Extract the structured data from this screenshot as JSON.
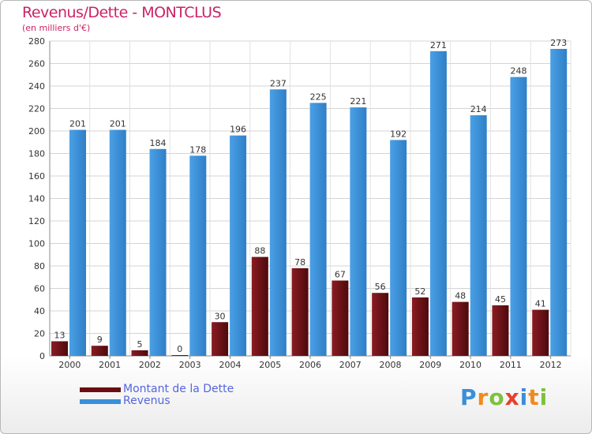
{
  "title": "Revenus/Dette - MONTCLUS",
  "subtitle": "(en milliers d'€)",
  "logo_text": "Proxiti",
  "chart_data": {
    "type": "bar",
    "title": "Revenus/Dette - MONTCLUS",
    "subtitle": "(en milliers d'€)",
    "categories": [
      "2000",
      "2001",
      "2002",
      "2003",
      "2004",
      "2005",
      "2006",
      "2007",
      "2008",
      "2009",
      "2010",
      "2011",
      "2012"
    ],
    "series": [
      {
        "name": "Montant de la Dette",
        "color": "#6b0e12",
        "values": [
          13,
          9,
          5,
          0,
          30,
          88,
          78,
          67,
          56,
          52,
          48,
          45,
          41
        ]
      },
      {
        "name": "Revenus",
        "color": "#3b8fd9",
        "values": [
          201,
          201,
          184,
          178,
          196,
          237,
          225,
          221,
          192,
          271,
          214,
          248,
          273
        ]
      }
    ],
    "ylim": [
      0,
      280
    ],
    "yticks": [
      0,
      20,
      40,
      60,
      80,
      100,
      120,
      140,
      160,
      180,
      200,
      220,
      240,
      260,
      280
    ],
    "grid": true,
    "legend_position": "bottom-left"
  }
}
